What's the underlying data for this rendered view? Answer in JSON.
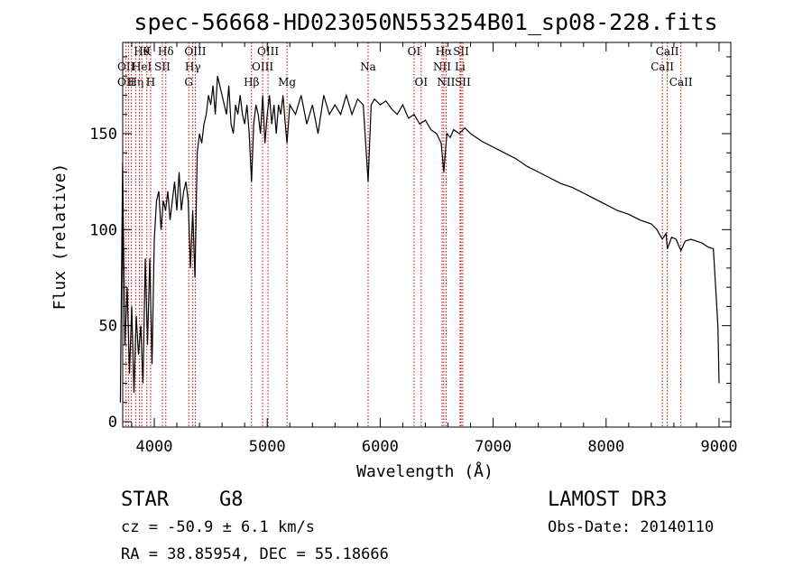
{
  "chart_data": {
    "type": "line",
    "title": "spec-56668-HD023050N553254B01_sp08-228.fits",
    "xlabel": "Wavelength (Å)",
    "ylabel": "Flux (relative)",
    "xlim": [
      3700,
      9100
    ],
    "ylim": [
      0,
      190
    ],
    "xticks": [
      4000,
      5000,
      6000,
      7000,
      8000,
      9000
    ],
    "yticks": [
      0,
      50,
      100,
      150
    ],
    "grid": false,
    "series": [
      {
        "name": "flux",
        "x": [
          3700,
          3720,
          3740,
          3760,
          3780,
          3800,
          3820,
          3840,
          3860,
          3880,
          3900,
          3920,
          3940,
          3960,
          3980,
          4000,
          4020,
          4040,
          4060,
          4080,
          4100,
          4120,
          4140,
          4160,
          4180,
          4200,
          4220,
          4240,
          4260,
          4280,
          4300,
          4320,
          4340,
          4360,
          4380,
          4400,
          4420,
          4440,
          4460,
          4480,
          4500,
          4520,
          4540,
          4560,
          4580,
          4600,
          4620,
          4640,
          4660,
          4680,
          4700,
          4720,
          4740,
          4760,
          4780,
          4800,
          4820,
          4840,
          4861,
          4880,
          4900,
          4920,
          4940,
          4960,
          4980,
          5000,
          5020,
          5040,
          5060,
          5080,
          5100,
          5120,
          5140,
          5160,
          5175,
          5200,
          5250,
          5300,
          5350,
          5400,
          5450,
          5500,
          5550,
          5600,
          5650,
          5700,
          5750,
          5800,
          5850,
          5893,
          5920,
          5950,
          6000,
          6050,
          6100,
          6150,
          6200,
          6250,
          6300,
          6350,
          6400,
          6450,
          6500,
          6540,
          6563,
          6590,
          6620,
          6650,
          6700,
          6750,
          6800,
          6900,
          7000,
          7100,
          7200,
          7300,
          7400,
          7500,
          7600,
          7700,
          7800,
          7900,
          8000,
          8100,
          8200,
          8300,
          8400,
          8450,
          8498,
          8530,
          8542,
          8580,
          8620,
          8662,
          8700,
          8750,
          8800,
          8850,
          8900,
          8950,
          8990,
          9000
        ],
        "values": [
          10,
          135,
          40,
          70,
          25,
          60,
          15,
          55,
          35,
          50,
          20,
          85,
          40,
          85,
          30,
          95,
          115,
          120,
          100,
          115,
          110,
          120,
          105,
          115,
          125,
          110,
          130,
          110,
          120,
          125,
          115,
          80,
          110,
          75,
          140,
          150,
          145,
          155,
          160,
          170,
          165,
          175,
          160,
          180,
          175,
          170,
          165,
          160,
          175,
          155,
          150,
          165,
          160,
          170,
          160,
          155,
          165,
          150,
          125,
          155,
          165,
          160,
          150,
          170,
          145,
          160,
          170,
          155,
          165,
          150,
          165,
          160,
          170,
          155,
          145,
          165,
          160,
          170,
          155,
          165,
          150,
          170,
          160,
          165,
          160,
          170,
          160,
          168,
          165,
          125,
          165,
          168,
          165,
          167,
          163,
          160,
          165,
          158,
          160,
          155,
          157,
          152,
          150,
          145,
          130,
          150,
          148,
          152,
          150,
          153,
          150,
          146,
          143,
          140,
          137,
          133,
          130,
          127,
          124,
          122,
          119,
          116,
          113,
          110,
          108,
          105,
          103,
          100,
          95,
          98,
          90,
          96,
          95,
          89,
          94,
          95,
          94,
          93,
          91,
          90,
          50,
          20
        ]
      }
    ],
    "lines": [
      {
        "w": 3750,
        "labels": [
          {
            "t": "OII",
            "row": 2
          },
          {
            "t": "OII",
            "row": 3
          }
        ]
      },
      {
        "w": 3771,
        "labels": []
      },
      {
        "w": 3798,
        "labels": []
      },
      {
        "w": 3835,
        "labels": [
          {
            "t": "Hη",
            "row": 3
          }
        ]
      },
      {
        "w": 3869,
        "labels": []
      },
      {
        "w": 3889,
        "labels": [
          {
            "t": "Hθ",
            "row": 1
          },
          {
            "t": "HeI",
            "row": 2
          }
        ]
      },
      {
        "w": 3934,
        "labels": [
          {
            "t": "K",
            "row": 1
          }
        ]
      },
      {
        "w": 3968,
        "labels": [
          {
            "t": "H",
            "row": 3
          }
        ]
      },
      {
        "w": 4072,
        "labels": [
          {
            "t": "SII",
            "row": 2
          }
        ]
      },
      {
        "w": 4102,
        "labels": [
          {
            "t": "Hδ",
            "row": 1
          }
        ]
      },
      {
        "w": 4305,
        "labels": [
          {
            "t": "G",
            "row": 3
          }
        ]
      },
      {
        "w": 4341,
        "labels": [
          {
            "t": "Hγ",
            "row": 2
          }
        ]
      },
      {
        "w": 4363,
        "labels": [
          {
            "t": "OIII",
            "row": 1
          }
        ]
      },
      {
        "w": 4861,
        "labels": [
          {
            "t": "Hβ",
            "row": 3
          }
        ]
      },
      {
        "w": 4959,
        "labels": [
          {
            "t": "OIII",
            "row": 2
          }
        ]
      },
      {
        "w": 5007,
        "labels": [
          {
            "t": "OIII",
            "row": 1
          }
        ]
      },
      {
        "w": 5175,
        "labels": [
          {
            "t": "Mg",
            "row": 3
          }
        ]
      },
      {
        "w": 5893,
        "labels": [
          {
            "t": "Na",
            "row": 2
          }
        ]
      },
      {
        "w": 6300,
        "labels": [
          {
            "t": "OI",
            "row": 1
          }
        ]
      },
      {
        "w": 6363,
        "labels": [
          {
            "t": "OI",
            "row": 3
          }
        ]
      },
      {
        "w": 6548,
        "labels": [
          {
            "t": "NII",
            "row": 2
          }
        ]
      },
      {
        "w": 6563,
        "labels": [
          {
            "t": "Hα",
            "row": 1
          }
        ]
      },
      {
        "w": 6583,
        "labels": [
          {
            "t": "NII",
            "row": 3
          }
        ]
      },
      {
        "w": 6707,
        "labels": [
          {
            "t": "Li",
            "row": 2
          }
        ]
      },
      {
        "w": 6716,
        "labels": [
          {
            "t": "SII",
            "row": 1
          }
        ]
      },
      {
        "w": 6731,
        "labels": [
          {
            "t": "SII",
            "row": 3
          }
        ]
      },
      {
        "w": 8498,
        "labels": [
          {
            "t": "CaII",
            "row": 2
          }
        ]
      },
      {
        "w": 8542,
        "labels": [
          {
            "t": "CaII",
            "row": 1
          }
        ]
      },
      {
        "w": 8662,
        "labels": [
          {
            "t": "CaII",
            "row": 3
          }
        ]
      }
    ]
  },
  "info": {
    "object_type": "STAR",
    "subclass": "G8",
    "survey": "LAMOST DR3",
    "cz": "cz = -50.9 ± 6.1 km/s",
    "obs_date": "Obs-Date: 20140110",
    "coords": "RA =  38.85954, DEC =  55.18666"
  }
}
